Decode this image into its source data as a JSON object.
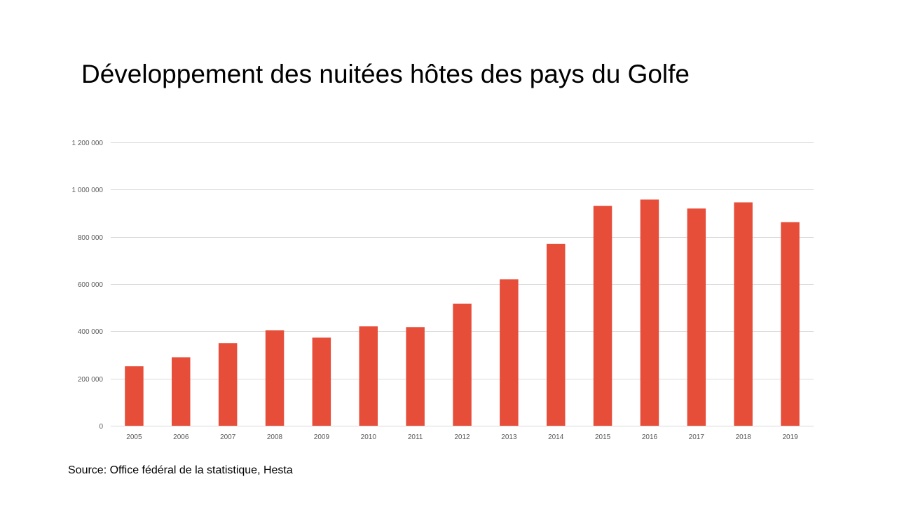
{
  "slide": {
    "title": "Développement des nuitées hôtes des pays du Golfe",
    "source": "Source: Office fédéral de la statistique, Hesta"
  },
  "chart_data": {
    "type": "bar",
    "title": "",
    "xlabel": "",
    "ylabel": "",
    "categories": [
      "2005",
      "2006",
      "2007",
      "2008",
      "2009",
      "2010",
      "2011",
      "2012",
      "2013",
      "2014",
      "2015",
      "2016",
      "2017",
      "2018",
      "2019"
    ],
    "values": [
      252000,
      290000,
      350000,
      404000,
      373000,
      421000,
      418000,
      517000,
      620000,
      770000,
      931000,
      958000,
      920000,
      946000,
      862000
    ],
    "ylim": [
      0,
      1200000
    ],
    "yticks": [
      0,
      200000,
      400000,
      600000,
      800000,
      1000000,
      1200000
    ],
    "ytick_labels": [
      "0",
      "200 000",
      "400 000",
      "600 000",
      "800 000",
      "1 000 000",
      "1 200 000"
    ],
    "grid": true,
    "legend": "none",
    "bar_color": "#E64E3A",
    "grid_color": "#D9D9D9",
    "tick_color": "#595959"
  }
}
